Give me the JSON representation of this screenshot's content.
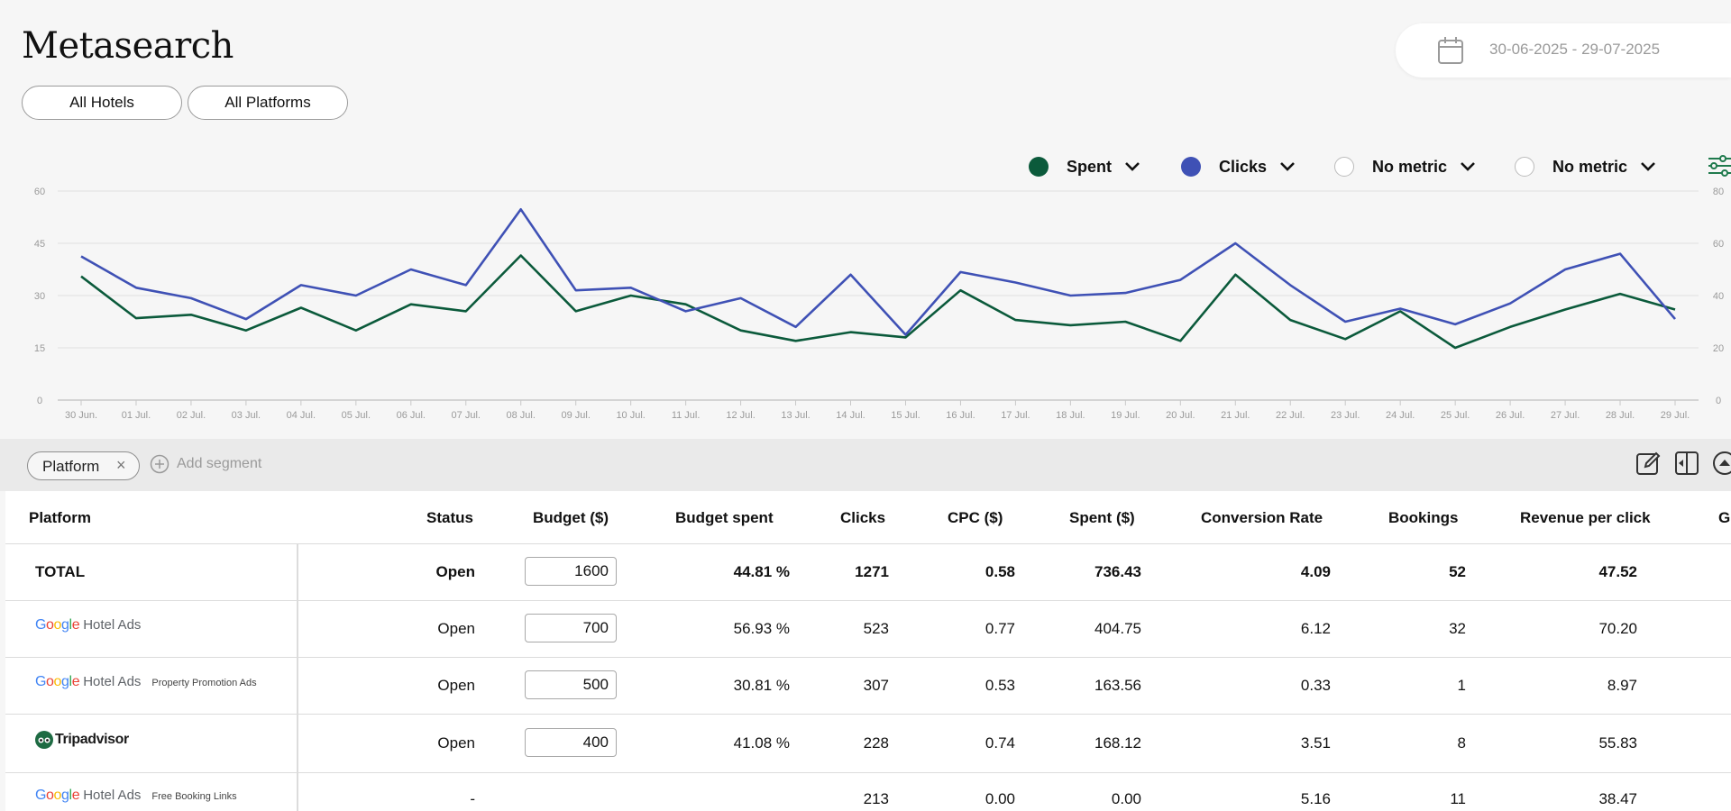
{
  "header": {
    "title": "Metasearch",
    "filters": [
      "All Hotels",
      "All Platforms"
    ],
    "date_range": "30-06-2025 - 29-07-2025"
  },
  "legend": [
    {
      "label": "Spent",
      "color": "#0b5a3b",
      "filled": true
    },
    {
      "label": "Clicks",
      "color": "#3f51b5",
      "filled": true
    },
    {
      "label": "No metric",
      "color": "#ffffff",
      "filled": false
    },
    {
      "label": "No metric",
      "color": "#ffffff",
      "filled": false
    }
  ],
  "chart_data": {
    "type": "line",
    "x": [
      "30 Jun.",
      "01 Jul.",
      "02 Jul.",
      "03 Jul.",
      "04 Jul.",
      "05 Jul.",
      "06 Jul.",
      "07 Jul.",
      "08 Jul.",
      "09 Jul.",
      "10 Jul.",
      "11 Jul.",
      "12 Jul.",
      "13 Jul.",
      "14 Jul.",
      "15 Jul.",
      "16 Jul.",
      "17 Jul.",
      "18 Jul.",
      "19 Jul.",
      "20 Jul.",
      "21 Jul.",
      "22 Jul.",
      "23 Jul.",
      "24 Jul.",
      "25 Jul.",
      "26 Jul.",
      "27 Jul.",
      "28 Jul.",
      "29 Jul."
    ],
    "left_axis": {
      "ticks": [
        "0",
        "15",
        "30",
        "45",
        "60"
      ],
      "ylim": [
        0,
        60
      ]
    },
    "right_axis": {
      "ticks": [
        "0",
        "20",
        "40",
        "60",
        "80"
      ],
      "ylim": [
        0,
        80
      ]
    },
    "grid": true,
    "series": [
      {
        "name": "Spent",
        "axis": "left",
        "color": "#0b5a3b",
        "values": [
          35.5,
          23.5,
          24.5,
          20,
          26.5,
          20,
          27.5,
          25.5,
          41.5,
          25.5,
          30,
          27.5,
          20,
          17,
          19.5,
          18,
          31.5,
          23,
          21.5,
          22.5,
          17,
          36,
          23,
          17.5,
          25.5,
          15,
          21,
          26,
          30.5,
          26
        ]
      },
      {
        "name": "Clicks",
        "axis": "right",
        "color": "#3f51b5",
        "values": [
          55,
          43,
          39,
          31,
          44,
          40,
          50,
          44,
          73,
          42,
          43,
          34,
          39,
          28,
          48,
          25,
          49,
          45,
          40,
          41,
          46,
          60,
          44,
          30,
          35,
          29,
          37,
          50,
          56,
          31
        ]
      }
    ]
  },
  "segments": {
    "chip": "Platform",
    "chip_close": "×",
    "add_label": "Add segment"
  },
  "table": {
    "columns": [
      "Platform",
      "Status",
      "Budget ($)",
      "Budget spent",
      "Clicks",
      "CPC ($)",
      "Spent ($)",
      "Conversion Rate",
      "Bookings",
      "Revenue per click",
      "G"
    ],
    "rows": [
      {
        "platform": "TOTAL",
        "status": "Open",
        "budget": "1600",
        "budget_spent": "44.81 %",
        "clicks": "1271",
        "cpc": "0.58",
        "spent": "736.43",
        "conversion": "4.09",
        "bookings": "52",
        "rpc": "47.52"
      },
      {
        "platform_logo": "Google",
        "platform_name": "Hotel Ads",
        "platform_sub": "",
        "status": "Open",
        "budget": "700",
        "budget_spent": "56.93 %",
        "clicks": "523",
        "cpc": "0.77",
        "spent": "404.75",
        "conversion": "6.12",
        "bookings": "32",
        "rpc": "70.20"
      },
      {
        "platform_logo": "Google",
        "platform_name": "Hotel Ads",
        "platform_sub": "Property Promotion Ads",
        "status": "Open",
        "budget": "500",
        "budget_spent": "30.81 %",
        "clicks": "307",
        "cpc": "0.53",
        "spent": "163.56",
        "conversion": "0.33",
        "bookings": "1",
        "rpc": "8.97"
      },
      {
        "platform_name": "Tripadvisor",
        "status": "Open",
        "budget": "400",
        "budget_spent": "41.08 %",
        "clicks": "228",
        "cpc": "0.74",
        "spent": "168.12",
        "conversion": "3.51",
        "bookings": "8",
        "rpc": "55.83"
      },
      {
        "platform_logo": "Google",
        "platform_name": "Hotel Ads",
        "platform_sub": "Free Booking Links",
        "status": "-",
        "budget": "",
        "budget_spent": "",
        "clicks": "213",
        "cpc": "0.00",
        "spent": "0.00",
        "conversion": "5.16",
        "bookings": "11",
        "rpc": "38.47"
      }
    ]
  }
}
